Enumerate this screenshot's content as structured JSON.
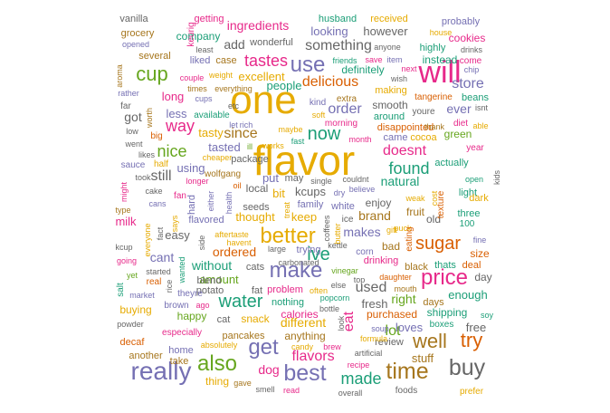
{
  "colors": {
    "green": "#1b9e77",
    "orange": "#d95f02",
    "purple": "#7570b3",
    "magenta": "#e7298a",
    "lime": "#66a61e",
    "gold": "#e6ab02",
    "brown": "#a6761d",
    "gray": "#666666"
  },
  "words": [
    {
      "text": "flavor",
      "color": "gold"
    },
    {
      "text": "one",
      "color": "gold"
    },
    {
      "text": "will",
      "color": "magenta"
    },
    {
      "text": "really",
      "color": "purple"
    },
    {
      "text": "buy",
      "color": "gray"
    },
    {
      "text": "time",
      "color": "brown"
    },
    {
      "text": "best",
      "color": "purple"
    },
    {
      "text": "also",
      "color": "lime"
    },
    {
      "text": "get",
      "color": "purple"
    },
    {
      "text": "use",
      "color": "purple"
    },
    {
      "text": "make",
      "color": "purple"
    },
    {
      "text": "price",
      "color": "magenta"
    },
    {
      "text": "better",
      "color": "gold"
    },
    {
      "text": "well",
      "color": "brown"
    },
    {
      "text": "try",
      "color": "orange"
    },
    {
      "text": "cup",
      "color": "lime"
    },
    {
      "text": "water",
      "color": "green"
    },
    {
      "text": "sugar",
      "color": "orange"
    },
    {
      "text": "now",
      "color": "green"
    },
    {
      "text": "ive",
      "color": "green"
    },
    {
      "text": "tastes",
      "color": "magenta"
    },
    {
      "text": "found",
      "color": "green"
    },
    {
      "text": "made",
      "color": "green"
    },
    {
      "text": "way",
      "color": "magenta"
    },
    {
      "text": "nice",
      "color": "lime"
    },
    {
      "text": "since",
      "color": "brown"
    },
    {
      "text": "eat",
      "color": "magenta"
    },
    {
      "text": "order",
      "color": "purple"
    },
    {
      "text": "flavors",
      "color": "magenta"
    },
    {
      "text": "doesnt",
      "color": "magenta"
    },
    {
      "text": "still",
      "color": "gray"
    },
    {
      "text": "used",
      "color": "gray"
    },
    {
      "text": "store",
      "color": "purple"
    },
    {
      "text": "delicious",
      "color": "orange"
    },
    {
      "text": "something",
      "color": "gray"
    },
    {
      "text": "lot",
      "color": "lime"
    },
    {
      "text": "makes",
      "color": "purple"
    },
    {
      "text": "different",
      "color": "gold"
    },
    {
      "text": "ordered",
      "color": "orange"
    },
    {
      "text": "brand",
      "color": "brown"
    },
    {
      "text": "without",
      "color": "green"
    },
    {
      "text": "cant",
      "color": "purple"
    },
    {
      "text": "dog",
      "color": "magenta"
    },
    {
      "text": "ever",
      "color": "purple"
    },
    {
      "text": "natural",
      "color": "green"
    },
    {
      "text": "right",
      "color": "lime"
    },
    {
      "text": "ingredients",
      "color": "magenta"
    },
    {
      "text": "add",
      "color": "gray"
    },
    {
      "text": "looking",
      "color": "purple"
    },
    {
      "text": "however",
      "color": "gray"
    },
    {
      "text": "excellent",
      "color": "gold"
    },
    {
      "text": "people",
      "color": "green"
    },
    {
      "text": "less",
      "color": "purple"
    },
    {
      "text": "got",
      "color": "gray"
    },
    {
      "text": "long",
      "color": "magenta"
    },
    {
      "text": "tasty",
      "color": "gold"
    },
    {
      "text": "tasted",
      "color": "purple"
    },
    {
      "text": "put",
      "color": "purple"
    },
    {
      "text": "kcups",
      "color": "gray"
    },
    {
      "text": "bit",
      "color": "gold"
    },
    {
      "text": "keep",
      "color": "gold"
    },
    {
      "text": "thought",
      "color": "gold"
    },
    {
      "text": "using",
      "color": "purple"
    },
    {
      "text": "easy",
      "color": "gray"
    },
    {
      "text": "milk",
      "color": "magenta"
    },
    {
      "text": "amount",
      "color": "lime"
    },
    {
      "text": "enough",
      "color": "green"
    },
    {
      "text": "free",
      "color": "gray"
    },
    {
      "text": "fresh",
      "color": "gray"
    },
    {
      "text": "loves",
      "color": "purple"
    },
    {
      "text": "purchased",
      "color": "orange"
    },
    {
      "text": "shipping",
      "color": "green"
    },
    {
      "text": "stuff",
      "color": "brown"
    },
    {
      "text": "anything",
      "color": "brown"
    },
    {
      "text": "snack",
      "color": "gold"
    },
    {
      "text": "calories",
      "color": "magenta"
    },
    {
      "text": "happy",
      "color": "lime"
    },
    {
      "text": "buying",
      "color": "gold"
    },
    {
      "text": "thing",
      "color": "gold"
    },
    {
      "text": "definitely",
      "color": "green"
    },
    {
      "text": "highly",
      "color": "green"
    },
    {
      "text": "cookies",
      "color": "magenta"
    },
    {
      "text": "instead",
      "color": "green"
    },
    {
      "text": "company",
      "color": "green"
    },
    {
      "text": "grocery",
      "color": "brown"
    },
    {
      "text": "vanilla",
      "color": "gray"
    },
    {
      "text": "getting",
      "color": "magenta"
    },
    {
      "text": "husband",
      "color": "green"
    },
    {
      "text": "received",
      "color": "gold"
    },
    {
      "text": "probably",
      "color": "purple"
    },
    {
      "text": "wonderful",
      "color": "gray"
    },
    {
      "text": "case",
      "color": "brown"
    },
    {
      "text": "liked",
      "color": "purple"
    },
    {
      "text": "several",
      "color": "brown"
    },
    {
      "text": "smooth",
      "color": "gray"
    },
    {
      "text": "making",
      "color": "gold"
    },
    {
      "text": "disappointed",
      "color": "orange"
    },
    {
      "text": "around",
      "color": "green"
    },
    {
      "text": "came",
      "color": "purple"
    },
    {
      "text": "cocoa",
      "color": "gold"
    },
    {
      "text": "green",
      "color": "lime"
    },
    {
      "text": "actually",
      "color": "green"
    },
    {
      "text": "package",
      "color": "gray"
    },
    {
      "text": "local",
      "color": "gray"
    },
    {
      "text": "family",
      "color": "purple"
    },
    {
      "text": "enjoy",
      "color": "gray"
    },
    {
      "text": "fruit",
      "color": "brown"
    },
    {
      "text": "old",
      "color": "gray"
    },
    {
      "text": "bad",
      "color": "brown"
    },
    {
      "text": "drinking",
      "color": "magenta"
    },
    {
      "text": "black",
      "color": "brown"
    },
    {
      "text": "thats",
      "color": "green"
    },
    {
      "text": "deal",
      "color": "orange"
    },
    {
      "text": "size",
      "color": "orange"
    },
    {
      "text": "day",
      "color": "gray"
    },
    {
      "text": "cats",
      "color": "gray"
    },
    {
      "text": "blend",
      "color": "gray"
    },
    {
      "text": "potato",
      "color": "gray"
    },
    {
      "text": "fat",
      "color": "gray"
    },
    {
      "text": "problem",
      "color": "magenta"
    },
    {
      "text": "nothing",
      "color": "green"
    },
    {
      "text": "pancakes",
      "color": "brown"
    },
    {
      "text": "cat",
      "color": "gray"
    },
    {
      "text": "decaf",
      "color": "orange"
    },
    {
      "text": "another",
      "color": "brown"
    },
    {
      "text": "home",
      "color": "purple"
    },
    {
      "text": "take",
      "color": "brown"
    },
    {
      "text": "review",
      "color": "gray"
    },
    {
      "text": "days",
      "color": "brown"
    },
    {
      "text": "seeds",
      "color": "gray"
    },
    {
      "text": "may",
      "color": "gray"
    },
    {
      "text": "trying",
      "color": "purple"
    },
    {
      "text": "white",
      "color": "purple"
    },
    {
      "text": "three",
      "color": "green"
    },
    {
      "text": "light",
      "color": "green"
    },
    {
      "text": "dark",
      "color": "gold"
    },
    {
      "text": "fan",
      "color": "magenta"
    },
    {
      "text": "hard",
      "color": "purple"
    },
    {
      "text": "flavored",
      "color": "purple"
    },
    {
      "text": "100",
      "color": "green"
    },
    {
      "text": "soy",
      "color": "green"
    },
    {
      "text": "year",
      "color": "magenta"
    },
    {
      "text": "diet",
      "color": "magenta"
    },
    {
      "text": "beans",
      "color": "green"
    },
    {
      "text": "tangerine",
      "color": "orange"
    },
    {
      "text": "come",
      "color": "magenta"
    },
    {
      "text": "youre",
      "color": "gray"
    },
    {
      "text": "kind",
      "color": "purple"
    },
    {
      "text": "extra",
      "color": "brown"
    },
    {
      "text": "morning",
      "color": "magenta"
    },
    {
      "text": "soft",
      "color": "gold"
    },
    {
      "text": "works",
      "color": "gold"
    },
    {
      "text": "maybe",
      "color": "gold"
    },
    {
      "text": "sauce",
      "color": "purple"
    },
    {
      "text": "half",
      "color": "gold"
    },
    {
      "text": "cheaper",
      "color": "gold"
    },
    {
      "text": "wolfgang",
      "color": "brown"
    },
    {
      "text": "longer",
      "color": "magenta"
    },
    {
      "text": "took",
      "color": "gray"
    },
    {
      "text": "cake",
      "color": "gray"
    },
    {
      "text": "cans",
      "color": "purple"
    },
    {
      "text": "type",
      "color": "brown"
    },
    {
      "text": "kcup",
      "color": "gray"
    },
    {
      "text": "going",
      "color": "magenta"
    },
    {
      "text": "real",
      "color": "orange"
    },
    {
      "text": "market",
      "color": "purple"
    },
    {
      "text": "started",
      "color": "gray"
    },
    {
      "text": "theyre",
      "color": "purple"
    },
    {
      "text": "ago",
      "color": "magenta"
    },
    {
      "text": "brown",
      "color": "purple"
    },
    {
      "text": "powder",
      "color": "gray"
    },
    {
      "text": "especially",
      "color": "magenta"
    },
    {
      "text": "absolutely",
      "color": "gold"
    },
    {
      "text": "gave",
      "color": "brown"
    },
    {
      "text": "smell",
      "color": "gray"
    },
    {
      "text": "read",
      "color": "magenta"
    },
    {
      "text": "overall",
      "color": "gray"
    },
    {
      "text": "foods",
      "color": "gray"
    },
    {
      "text": "prefer",
      "color": "gold"
    },
    {
      "text": "boxes",
      "color": "green"
    },
    {
      "text": "soup",
      "color": "purple"
    },
    {
      "text": "artificial",
      "color": "gray"
    },
    {
      "text": "formula",
      "color": "gold"
    },
    {
      "text": "candy",
      "color": "gold"
    },
    {
      "text": "brew",
      "color": "magenta"
    },
    {
      "text": "recipe",
      "color": "magenta"
    },
    {
      "text": "bottle",
      "color": "gray"
    },
    {
      "text": "else",
      "color": "gray"
    },
    {
      "text": "often",
      "color": "gold"
    },
    {
      "text": "popcorn",
      "color": "green"
    },
    {
      "text": "vinegar",
      "color": "lime"
    },
    {
      "text": "top",
      "color": "gray"
    },
    {
      "text": "daughter",
      "color": "orange"
    },
    {
      "text": "mouth",
      "color": "brown"
    },
    {
      "text": "carbonated",
      "color": "gray"
    },
    {
      "text": "large",
      "color": "gray"
    },
    {
      "text": "havent",
      "color": "gold"
    },
    {
      "text": "aftertaste",
      "color": "gold"
    },
    {
      "text": "kettle",
      "color": "gray"
    },
    {
      "text": "gift",
      "color": "gold"
    },
    {
      "text": "puck",
      "color": "gold"
    },
    {
      "text": "weak",
      "color": "gold"
    },
    {
      "text": "cost",
      "color": "gold"
    },
    {
      "text": "couldnt",
      "color": "gray"
    },
    {
      "text": "believe",
      "color": "purple"
    },
    {
      "text": "single",
      "color": "gray"
    },
    {
      "text": "dry",
      "color": "purple"
    },
    {
      "text": "fast",
      "color": "green"
    },
    {
      "text": "ill",
      "color": "lime"
    },
    {
      "text": "let",
      "color": "purple"
    },
    {
      "text": "rich",
      "color": "purple"
    },
    {
      "text": "month",
      "color": "magenta"
    },
    {
      "text": "thank",
      "color": "brown"
    },
    {
      "text": "open",
      "color": "green"
    },
    {
      "text": "isnt",
      "color": "gray"
    },
    {
      "text": "able",
      "color": "gold"
    },
    {
      "text": "kids",
      "color": "gray"
    },
    {
      "text": "fine",
      "color": "purple"
    },
    {
      "text": "chip",
      "color": "purple"
    },
    {
      "text": "drinks",
      "color": "gray"
    },
    {
      "text": "house",
      "color": "gold"
    },
    {
      "text": "anyone",
      "color": "gray"
    },
    {
      "text": "save",
      "color": "magenta"
    },
    {
      "text": "item",
      "color": "purple"
    },
    {
      "text": "friends",
      "color": "green"
    },
    {
      "text": "wish",
      "color": "gray"
    },
    {
      "text": "next",
      "color": "magenta"
    },
    {
      "text": "least",
      "color": "gray"
    },
    {
      "text": "weight",
      "color": "gold"
    },
    {
      "text": "couple",
      "color": "magenta"
    },
    {
      "text": "times",
      "color": "brown"
    },
    {
      "text": "everything",
      "color": "brown"
    },
    {
      "text": "cups",
      "color": "purple"
    },
    {
      "text": "available",
      "color": "green"
    },
    {
      "text": "etc",
      "color": "gray"
    },
    {
      "text": "aroma",
      "color": "brown"
    },
    {
      "text": "rather",
      "color": "purple"
    },
    {
      "text": "far",
      "color": "gray"
    },
    {
      "text": "worth",
      "color": "brown"
    },
    {
      "text": "low",
      "color": "gray"
    },
    {
      "text": "went",
      "color": "gray"
    },
    {
      "text": "big",
      "color": "orange"
    },
    {
      "text": "likes",
      "color": "gray"
    },
    {
      "text": "might",
      "color": "magenta"
    },
    {
      "text": "salt",
      "color": "green"
    },
    {
      "text": "yet",
      "color": "lime"
    },
    {
      "text": "keurig",
      "color": "magenta"
    },
    {
      "text": "opened",
      "color": "purple"
    },
    {
      "text": "either",
      "color": "purple"
    },
    {
      "text": "health",
      "color": "purple"
    },
    {
      "text": "oil",
      "color": "orange"
    },
    {
      "text": "says",
      "color": "gold"
    },
    {
      "text": "fact",
      "color": "gray"
    },
    {
      "text": "everyone",
      "color": "gold"
    },
    {
      "text": "side",
      "color": "gray"
    },
    {
      "text": "wanted",
      "color": "green"
    },
    {
      "text": "rice",
      "color": "gray"
    },
    {
      "text": "coffees",
      "color": "gray"
    },
    {
      "text": "butter",
      "color": "gold"
    },
    {
      "text": "treat",
      "color": "gold"
    },
    {
      "text": "ice",
      "color": "gray"
    },
    {
      "text": "corn",
      "color": "purple"
    },
    {
      "text": "eating",
      "color": "orange"
    },
    {
      "text": "texture",
      "color": "orange"
    },
    {
      "text": "look",
      "color": "gray"
    }
  ]
}
